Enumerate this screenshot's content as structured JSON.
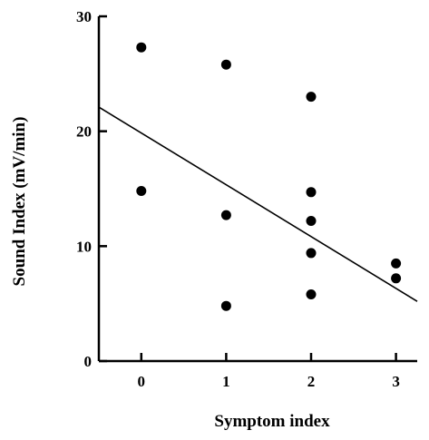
{
  "chart_data": {
    "type": "scatter",
    "xlabel": "Symptom index",
    "ylabel": "Sound Index (mV/min)",
    "x_ticks": [
      "0",
      "1",
      "2",
      "3"
    ],
    "y_ticks": [
      "0",
      "10",
      "20",
      "30"
    ],
    "xlim": [
      -0.5,
      3.25
    ],
    "ylim": [
      0,
      30
    ],
    "grid": false,
    "legend": "none",
    "points": [
      {
        "x": 0,
        "y": 27.3
      },
      {
        "x": 0,
        "y": 14.8
      },
      {
        "x": 1,
        "y": 25.8
      },
      {
        "x": 1,
        "y": 12.7
      },
      {
        "x": 1,
        "y": 4.8
      },
      {
        "x": 2,
        "y": 23.0
      },
      {
        "x": 2,
        "y": 14.7
      },
      {
        "x": 2,
        "y": 12.2
      },
      {
        "x": 2,
        "y": 9.4
      },
      {
        "x": 2,
        "y": 5.8
      },
      {
        "x": 3,
        "y": 8.5
      },
      {
        "x": 3,
        "y": 7.2
      }
    ],
    "regression_line": {
      "x": [
        -0.5,
        3.25
      ],
      "y": [
        22.1,
        5.2
      ]
    },
    "colors": {
      "points": "#000000",
      "line": "#000000",
      "axes": "#000000"
    }
  }
}
